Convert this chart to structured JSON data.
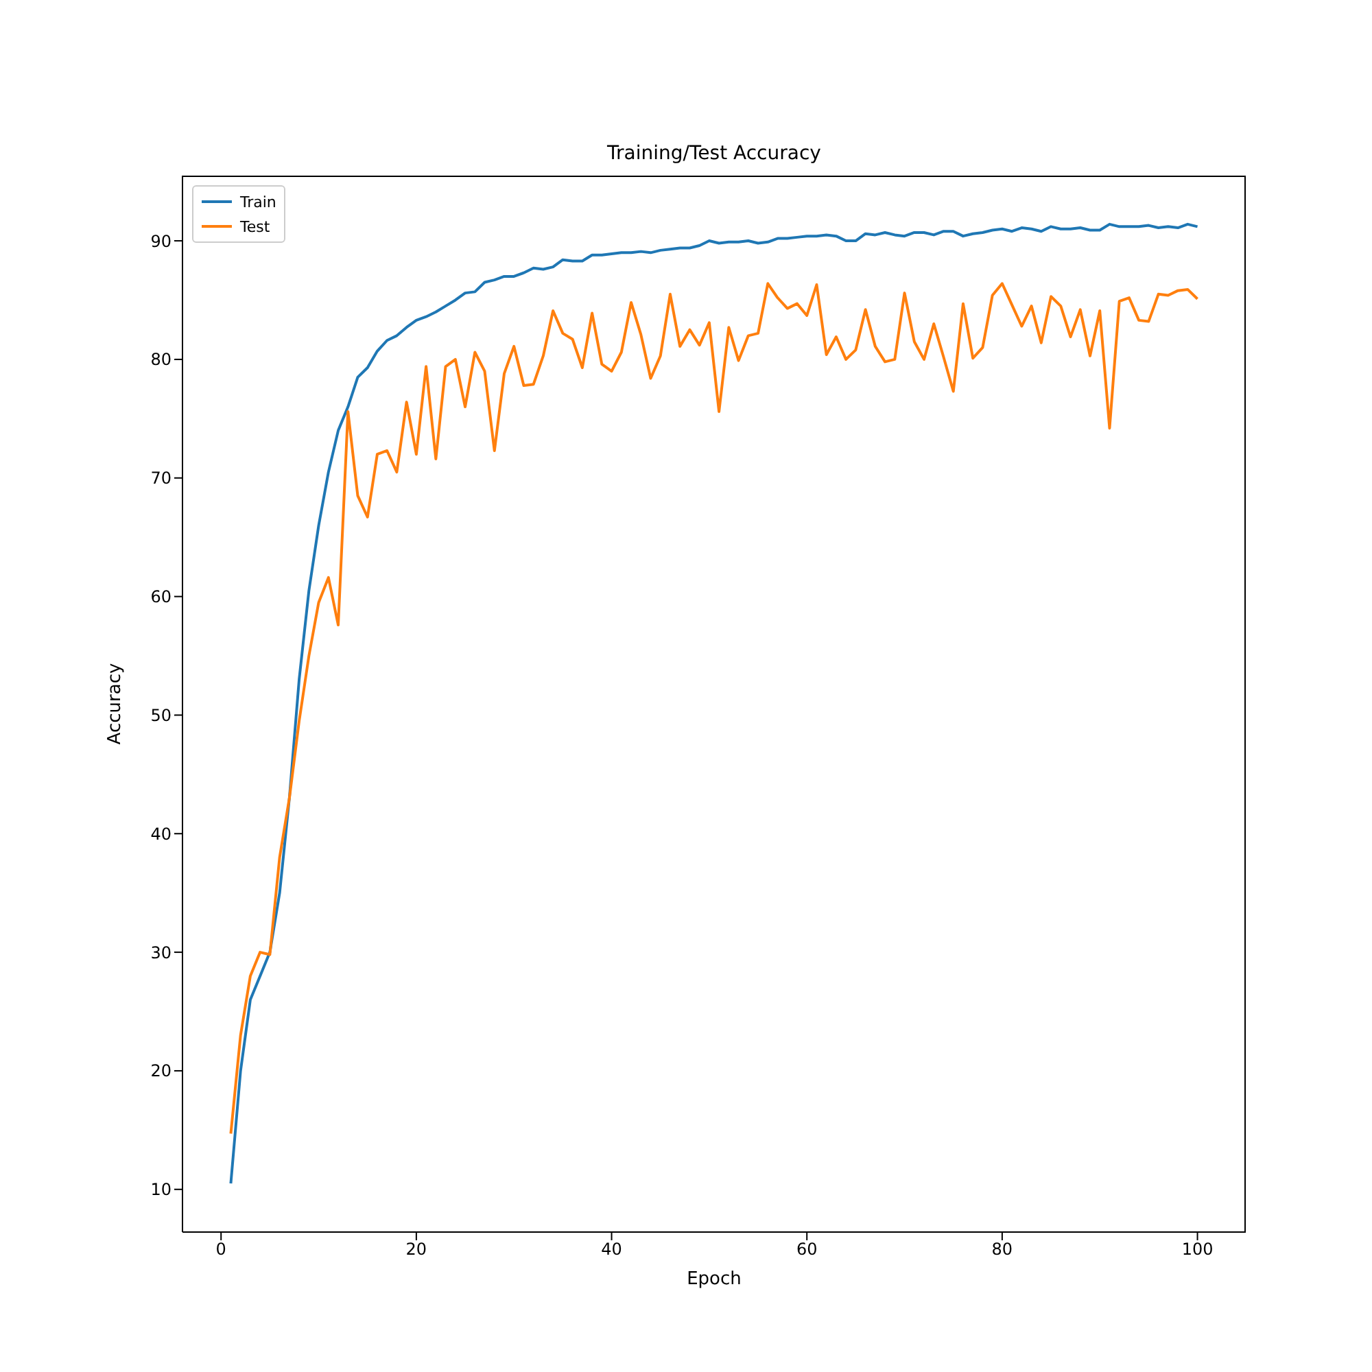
{
  "chart_data": {
    "type": "line",
    "title": "Training/Test Accuracy",
    "xlabel": "Epoch",
    "ylabel": "Accuracy",
    "x": [
      1,
      2,
      3,
      4,
      5,
      6,
      7,
      8,
      9,
      10,
      11,
      12,
      13,
      14,
      15,
      16,
      17,
      18,
      19,
      20,
      21,
      22,
      23,
      24,
      25,
      26,
      27,
      28,
      29,
      30,
      31,
      32,
      33,
      34,
      35,
      36,
      37,
      38,
      39,
      40,
      41,
      42,
      43,
      44,
      45,
      46,
      47,
      48,
      49,
      50,
      51,
      52,
      53,
      54,
      55,
      56,
      57,
      58,
      59,
      60,
      61,
      62,
      63,
      64,
      65,
      66,
      67,
      68,
      69,
      70,
      71,
      72,
      73,
      74,
      75,
      76,
      77,
      78,
      79,
      80,
      81,
      82,
      83,
      84,
      85,
      86,
      87,
      88,
      89,
      90,
      91,
      92,
      93,
      94,
      95,
      96,
      97,
      98,
      99,
      100
    ],
    "series": [
      {
        "name": "Train",
        "color": "#1f77b4",
        "values": [
          10.5,
          20,
          26,
          28,
          30,
          35,
          43,
          53,
          60.5,
          66,
          70.5,
          74,
          76,
          78.5,
          79.3,
          80.7,
          81.6,
          82,
          82.7,
          83.3,
          83.6,
          84,
          84.5,
          85,
          85.6,
          85.7,
          86.5,
          86.7,
          87,
          87,
          87.3,
          87.7,
          87.6,
          87.8,
          88.4,
          88.3,
          88.3,
          88.8,
          88.8,
          88.9,
          89,
          89,
          89.1,
          89,
          89.2,
          89.3,
          89.4,
          89.4,
          89.6,
          90,
          89.8,
          89.9,
          89.9,
          90,
          89.8,
          89.9,
          90.2,
          90.2,
          90.3,
          90.4,
          90.4,
          90.5,
          90.4,
          90,
          90,
          90.6,
          90.5,
          90.7,
          90.5,
          90.4,
          90.7,
          90.7,
          90.5,
          90.8,
          90.8,
          90.4,
          90.6,
          90.7,
          90.9,
          91,
          90.8,
          91.1,
          91,
          90.8,
          91.2,
          91,
          91,
          91.1,
          90.9,
          90.9,
          91.4,
          91.2,
          91.2,
          91.2,
          91.3,
          91.1,
          91.2,
          91.1,
          91.4,
          91.2
        ]
      },
      {
        "name": "Test",
        "color": "#ff7f0e",
        "values": [
          14.7,
          23,
          28,
          30,
          29.8,
          38,
          43,
          49.5,
          55,
          59.5,
          61.6,
          57.6,
          75.6,
          68.5,
          66.7,
          72,
          72.3,
          70.5,
          76.4,
          72,
          79.4,
          71.6,
          79.4,
          80,
          76,
          80.6,
          79,
          72.3,
          78.8,
          81.1,
          77.8,
          77.9,
          80.3,
          84.1,
          82.2,
          81.7,
          79.3,
          83.9,
          79.6,
          79,
          80.6,
          84.8,
          82.1,
          78.4,
          80.3,
          85.5,
          81.1,
          82.5,
          81.2,
          83.1,
          75.6,
          82.7,
          79.9,
          82,
          82.2,
          86.4,
          85.2,
          84.3,
          84.7,
          83.7,
          86.3,
          80.4,
          81.9,
          80,
          80.8,
          84.2,
          81.1,
          79.8,
          80,
          85.6,
          81.5,
          80,
          83,
          80.2,
          77.3,
          84.7,
          80.1,
          81,
          85.4,
          86.4,
          84.6,
          82.8,
          84.5,
          81.4,
          85.3,
          84.5,
          81.9,
          84.2,
          80.3,
          84.1,
          74.2,
          84.9,
          85.2,
          83.3,
          83.2,
          85.5,
          85.4,
          85.8,
          85.9,
          85.1
        ]
      }
    ],
    "xlim": [
      -3.95,
      104.95
    ],
    "xticks": [
      0,
      20,
      40,
      60,
      80,
      100
    ],
    "ylim": [
      6.4,
      95.5
    ],
    "yticks": [
      10,
      20,
      30,
      40,
      50,
      60,
      70,
      80,
      90
    ],
    "grid": false,
    "legend": "top left",
    "marker": "none",
    "line_style": "solid"
  }
}
